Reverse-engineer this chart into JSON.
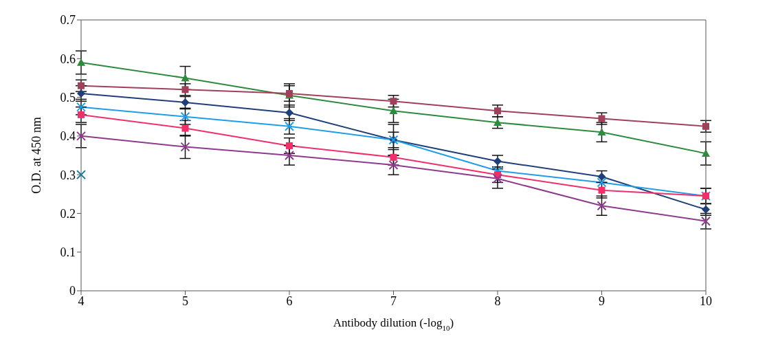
{
  "chart_data": {
    "type": "line",
    "xlabel": "Antibody dilution (-log$_{10}$)",
    "ylabel": "O.D. at 450 nm",
    "categories": [
      "4",
      "5",
      "6",
      "7",
      "8",
      "9",
      "10"
    ],
    "ylim": [
      0,
      0.7
    ],
    "yticks": [
      0,
      0.1,
      0.2,
      0.3,
      0.4,
      0.5,
      0.6,
      0.7
    ],
    "grid": false,
    "legend": false,
    "series": [
      {
        "color": "#2e8b3e",
        "marker": "triangle",
        "values": [
          0.59,
          0.55,
          0.505,
          0.465,
          0.435,
          0.41,
          0.355
        ],
        "errors": [
          0.03,
          0.03,
          0.03,
          0.03,
          0.015,
          0.025,
          0.03
        ]
      },
      {
        "color": "#a0405a",
        "marker": "square",
        "values": [
          0.53,
          0.52,
          0.51,
          0.49,
          0.465,
          0.445,
          0.425
        ],
        "errors": [
          0.015,
          0.015,
          0.02,
          0.015,
          0.015,
          0.015,
          0.015
        ]
      },
      {
        "color": "#1f3f7a",
        "marker": "diamond",
        "values": [
          0.51,
          0.487,
          0.46,
          0.39,
          0.335,
          0.295,
          0.21
        ],
        "errors": [
          0.02,
          0.015,
          0.02,
          0.02,
          0.015,
          0.015,
          0.015
        ]
      },
      {
        "color": "#1e9ee8",
        "marker": "cross",
        "values": [
          0.475,
          0.45,
          0.425,
          0.39,
          0.31,
          0.28,
          0.245
        ],
        "errors": [
          0.02,
          0.02,
          0.02,
          0.04,
          null,
          null,
          0.02
        ]
      },
      {
        "color": "#f0306a",
        "marker": "square",
        "values": [
          0.455,
          0.42,
          0.375,
          0.345,
          0.3,
          0.26,
          0.245
        ],
        "errors": [
          0.02,
          0.02,
          0.02,
          0.02,
          0.02,
          0.02,
          0.02
        ]
      },
      {
        "color": "#8e3a8e",
        "marker": "cross",
        "values": [
          0.4,
          0.372,
          0.35,
          0.325,
          0.29,
          0.22,
          0.18
        ],
        "errors": [
          0.03,
          0.03,
          0.025,
          0.025,
          0.025,
          0.025,
          0.02
        ]
      },
      {
        "color": "#1a7a9a",
        "marker": "cross",
        "values": [
          0.3,
          null,
          null,
          null,
          null,
          null,
          null
        ]
      }
    ]
  }
}
